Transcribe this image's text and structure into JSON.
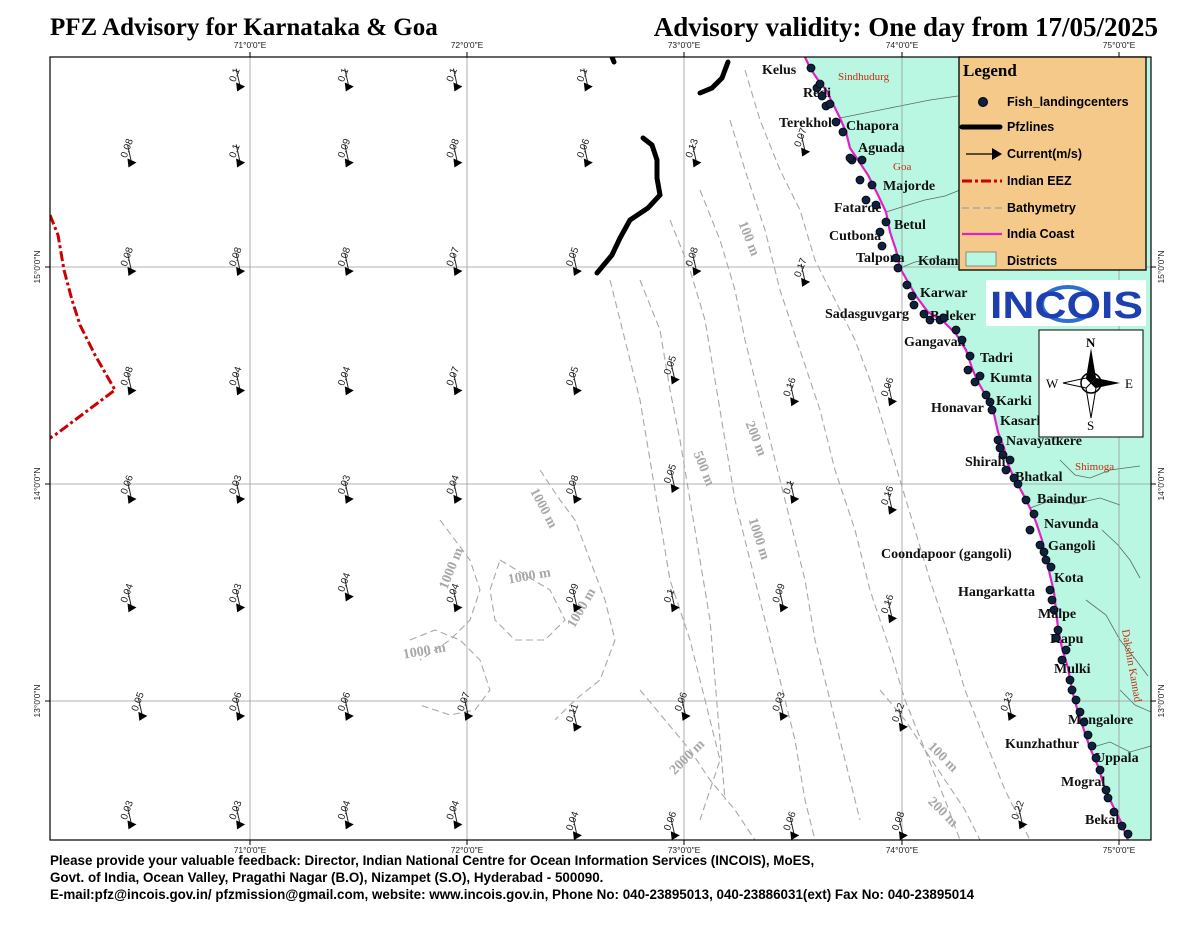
{
  "header": {
    "title": "PFZ Advisory for Karnataka & Goa",
    "validity": "Advisory validity: One day from 17/05/2025"
  },
  "map": {
    "lon_ticks": [
      "71°0'0\"E",
      "72°0'0\"E",
      "73°0'0\"E",
      "74°0'0\"E",
      "75°0'0\"E"
    ],
    "lat_ticks": [
      "15°0'0\"N",
      "14°0'0\"N",
      "13°0'0\"N"
    ],
    "colors": {
      "land": "#b9f7e2",
      "coast": "#e020c8",
      "eez": "#cc0000",
      "bathy": "#a8a8a8",
      "legend_bg": "#f5c98a",
      "pfz": "#000000"
    },
    "bathymetry_labels": [
      "100 m",
      "200 m",
      "500 m",
      "1000 m",
      "1000 m",
      "1000 m",
      "1000 m",
      "1000 m",
      "1000 m",
      "2000 m",
      "100 m",
      "200 m"
    ],
    "districts": [
      "Sindhudurg",
      "Goa",
      "Shimoga",
      "Dakshin Kannad"
    ],
    "landing_centers": [
      "Kelus",
      "Redi",
      "Terekhol",
      "Chapora",
      "Aguada",
      "Majorde",
      "Fatarde",
      "Betul",
      "Cutbona",
      "Talpona",
      "Kolam",
      "Karwar",
      "Sadasguvgarg",
      "Beleker",
      "Gangavali",
      "Tadri",
      "Kumta",
      "Karki",
      "Honavar",
      "Kasarkod",
      "Navayatkere",
      "Shirali",
      "Bhatkal",
      "Baindur",
      "Navunda",
      "Gangoli",
      "Coondapoor (gangoli)",
      "Kota",
      "Hangarkatta",
      "Malpe",
      "Kapu",
      "Mulki",
      "Mangalore",
      "Kunzhathur",
      "Uppala",
      "Mogral",
      "Bekal"
    ],
    "currents": [
      {
        "v": "0.1",
        "lon": 70.95,
        "lat": 15.85
      },
      {
        "v": "0.1",
        "lon": 71.45,
        "lat": 15.85
      },
      {
        "v": "0.1",
        "lon": 71.95,
        "lat": 15.85
      },
      {
        "v": "0.1",
        "lon": 72.55,
        "lat": 15.85
      },
      {
        "v": "0.08",
        "lon": 70.45,
        "lat": 15.5
      },
      {
        "v": "0.1",
        "lon": 70.95,
        "lat": 15.5
      },
      {
        "v": "0.09",
        "lon": 71.45,
        "lat": 15.5
      },
      {
        "v": "0.08",
        "lon": 71.95,
        "lat": 15.5
      },
      {
        "v": "0.06",
        "lon": 72.55,
        "lat": 15.5
      },
      {
        "v": "0.13",
        "lon": 73.05,
        "lat": 15.5
      },
      {
        "v": "0.07",
        "lon": 73.55,
        "lat": 15.55
      },
      {
        "v": "0.08",
        "lon": 70.45,
        "lat": 15.0
      },
      {
        "v": "0.08",
        "lon": 70.95,
        "lat": 15.0
      },
      {
        "v": "0.08",
        "lon": 71.45,
        "lat": 15.0
      },
      {
        "v": "0.07",
        "lon": 71.95,
        "lat": 15.0
      },
      {
        "v": "0.05",
        "lon": 72.5,
        "lat": 15.0
      },
      {
        "v": "0.08",
        "lon": 73.05,
        "lat": 15.0
      },
      {
        "v": "0.17",
        "lon": 73.55,
        "lat": 14.95
      },
      {
        "v": "0.08",
        "lon": 70.45,
        "lat": 14.45
      },
      {
        "v": "0.04",
        "lon": 70.95,
        "lat": 14.45
      },
      {
        "v": "0.04",
        "lon": 71.45,
        "lat": 14.45
      },
      {
        "v": "0.07",
        "lon": 71.95,
        "lat": 14.45
      },
      {
        "v": "0.05",
        "lon": 72.5,
        "lat": 14.45
      },
      {
        "v": "0.05",
        "lon": 72.95,
        "lat": 14.5
      },
      {
        "v": "0.16",
        "lon": 73.5,
        "lat": 14.4
      },
      {
        "v": "0.06",
        "lon": 73.95,
        "lat": 14.4
      },
      {
        "v": "0.06",
        "lon": 70.45,
        "lat": 13.95
      },
      {
        "v": "0.03",
        "lon": 70.95,
        "lat": 13.95
      },
      {
        "v": "0.03",
        "lon": 71.45,
        "lat": 13.95
      },
      {
        "v": "0.04",
        "lon": 71.95,
        "lat": 13.95
      },
      {
        "v": "0.08",
        "lon": 72.5,
        "lat": 13.95
      },
      {
        "v": "0.05",
        "lon": 72.95,
        "lat": 14.0
      },
      {
        "v": "0.1",
        "lon": 73.5,
        "lat": 13.95
      },
      {
        "v": "0.16",
        "lon": 73.95,
        "lat": 13.9
      },
      {
        "v": "0.04",
        "lon": 70.45,
        "lat": 13.45
      },
      {
        "v": "0.03",
        "lon": 70.95,
        "lat": 13.45
      },
      {
        "v": "0.04",
        "lon": 71.45,
        "lat": 13.5
      },
      {
        "v": "0.04",
        "lon": 71.95,
        "lat": 13.45
      },
      {
        "v": "0.09",
        "lon": 72.5,
        "lat": 13.45
      },
      {
        "v": "0.1",
        "lon": 72.95,
        "lat": 13.45
      },
      {
        "v": "0.09",
        "lon": 73.45,
        "lat": 13.45
      },
      {
        "v": "0.16",
        "lon": 73.95,
        "lat": 13.4
      },
      {
        "v": "0.05",
        "lon": 70.5,
        "lat": 12.95
      },
      {
        "v": "0.06",
        "lon": 70.95,
        "lat": 12.95
      },
      {
        "v": "0.06",
        "lon": 71.45,
        "lat": 12.95
      },
      {
        "v": "0.07",
        "lon": 72.0,
        "lat": 12.95
      },
      {
        "v": "0.11",
        "lon": 72.5,
        "lat": 12.9
      },
      {
        "v": "0.06",
        "lon": 73.0,
        "lat": 12.95
      },
      {
        "v": "0.03",
        "lon": 73.45,
        "lat": 12.95
      },
      {
        "v": "0.12",
        "lon": 74.0,
        "lat": 12.9
      },
      {
        "v": "0.13",
        "lon": 74.5,
        "lat": 12.95
      },
      {
        "v": "0.03",
        "lon": 70.45,
        "lat": 12.45
      },
      {
        "v": "0.03",
        "lon": 70.95,
        "lat": 12.45
      },
      {
        "v": "0.04",
        "lon": 71.45,
        "lat": 12.45
      },
      {
        "v": "0.04",
        "lon": 71.95,
        "lat": 12.45
      },
      {
        "v": "0.04",
        "lon": 72.5,
        "lat": 12.4
      },
      {
        "v": "0.06",
        "lon": 72.95,
        "lat": 12.4
      },
      {
        "v": "0.06",
        "lon": 73.5,
        "lat": 12.4
      },
      {
        "v": "0.08",
        "lon": 74.0,
        "lat": 12.4
      },
      {
        "v": "0.22",
        "lon": 74.55,
        "lat": 12.45
      }
    ]
  },
  "legend": {
    "title": "Legend",
    "items": [
      "Fish_landingcenters",
      "Pfzlines",
      "Current(m/s)",
      "Indian EEZ",
      "Bathymetry",
      "India Coast",
      "Districts"
    ]
  },
  "logo": {
    "text": "INCOIS"
  },
  "compass": {
    "n": "N",
    "s": "S",
    "e": "E",
    "w": "W"
  },
  "footer": {
    "line1": "Please provide your valuable feedback: Director, Indian National Centre for Ocean Information Services (INCOIS), MoES,",
    "line2": "Govt. of India, Ocean Valley, Pragathi Nagar (B.O), Nizampet (S.O), Hyderabad - 500090.",
    "line3": "E-mail:pfz@incois.gov.in/ pfzmission@gmail.com, website: www.incois.gov.in, Phone No: 040-23895013, 040-23886031(ext) Fax No: 040-23895014"
  }
}
